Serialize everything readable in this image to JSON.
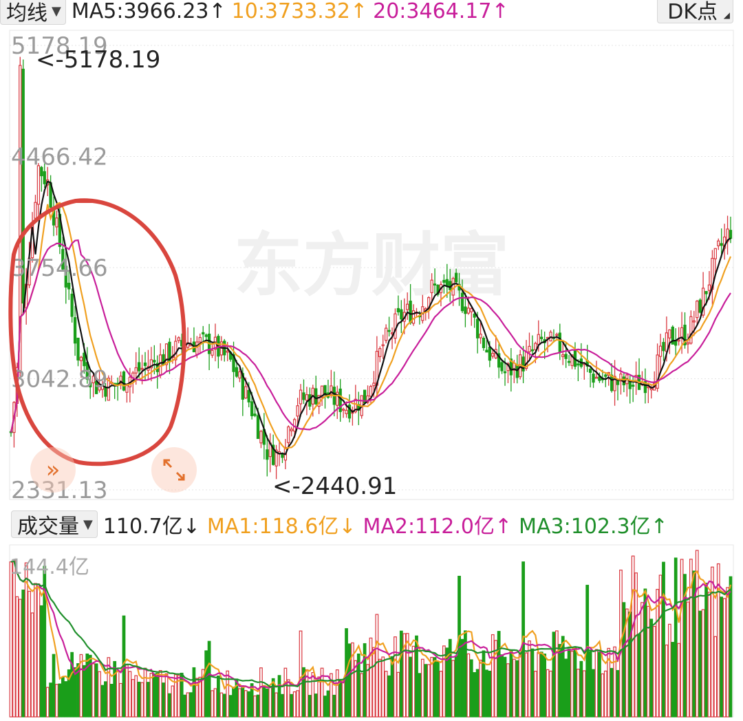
{
  "header": {
    "indicator_select": "均线",
    "ma5": "MA5:3966.23↑",
    "ma10": "10:3733.32↑",
    "ma20": "20:3464.17↑",
    "dk_button": "DK点"
  },
  "price_panel": {
    "y_ticks": [
      "5178.19",
      "4466.42",
      "3754.66",
      "3042.89",
      "2331.13"
    ],
    "high_annotation": "<-5178.19",
    "low_annotation": "<-2440.91",
    "watermark": "东方财富"
  },
  "volume_header": {
    "select": "成交量",
    "current": "110.7亿↓",
    "ma1": "MA1:118.6亿↓",
    "ma2": "MA2:112.0亿↑",
    "ma3": "MA3:102.3亿↑"
  },
  "volume_panel": {
    "max_label": "144.4亿"
  },
  "colors": {
    "up": "#d9363e",
    "down": "#1a9e1a",
    "ma5": "#111111",
    "ma10": "#f0a020",
    "ma20": "#c81e9a",
    "vol_ma3": "#1f8f2b",
    "annotation_circle": "#d9463e",
    "accent_orange": "#e2702c"
  },
  "chart_data": {
    "type": "candlestick",
    "ylim": [
      2331.13,
      5178.19
    ],
    "y_ticks": [
      5178.19,
      4466.42,
      3754.66,
      3042.89,
      2331.13
    ],
    "high": 5178.19,
    "low": 2440.91,
    "ma_last": {
      "MA5": 3966.23,
      "MA10": 3733.32,
      "MA20": 3464.17
    },
    "volume": {
      "ylim_max": 144.4,
      "unit": "亿",
      "last": 110.7,
      "MA1": 118.6,
      "MA2": 112.0,
      "MA3": 102.3
    }
  }
}
